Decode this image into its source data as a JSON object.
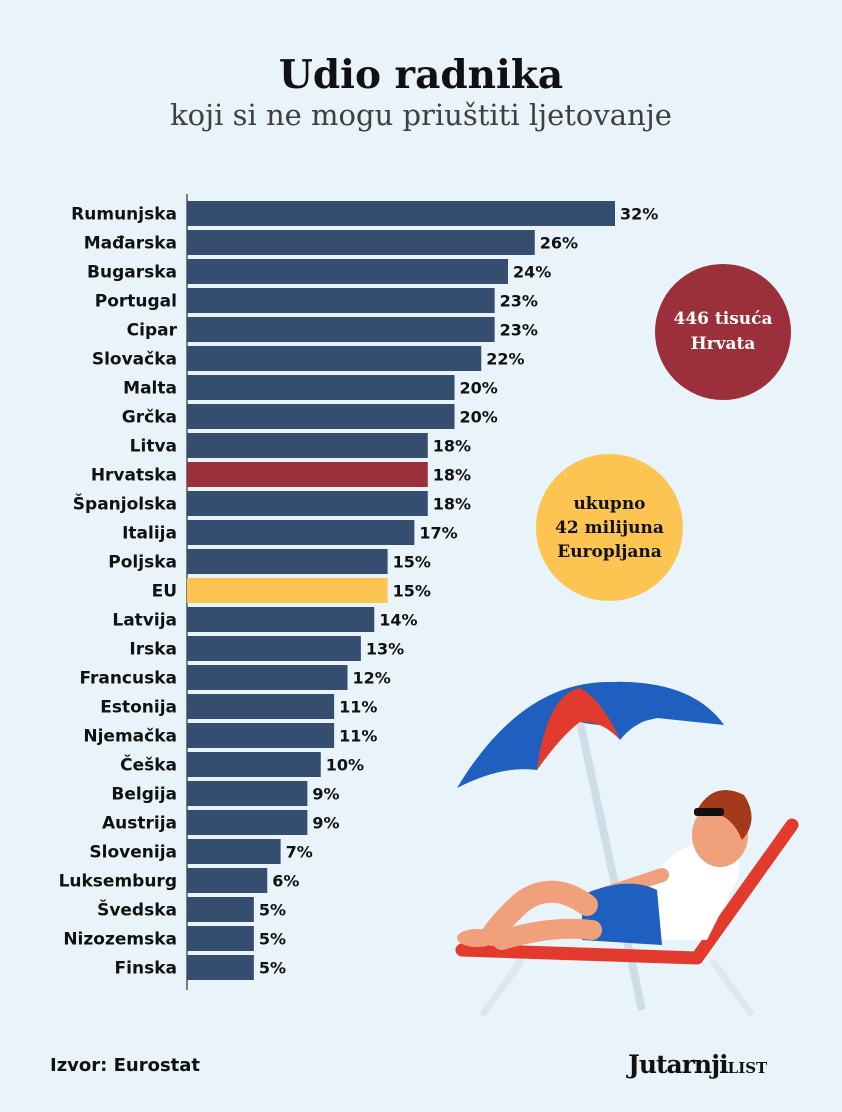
{
  "title": "Udio radnika",
  "subtitle": "koji si ne mogu priuštiti ljetovanje",
  "bubbles": {
    "red": [
      "446 tisuća",
      "Hrvata"
    ],
    "yellow": [
      "ukupno",
      "42 milijuna",
      "Europljana"
    ]
  },
  "source": "Izvor: Eurostat",
  "logo": {
    "main": "Jutarnji",
    "small": "LIST"
  },
  "colors": {
    "default": "#354d6f",
    "highlight_croatia": "#9b2f3a",
    "highlight_eu": "#fcc451",
    "background": "#e9f3fa"
  },
  "chart_data": {
    "type": "bar",
    "orientation": "horizontal",
    "unit": "%",
    "categories": [
      "Rumunjska",
      "Mađarska",
      "Bugarska",
      "Portugal",
      "Cipar",
      "Slovačka",
      "Malta",
      "Grčka",
      "Litva",
      "Hrvatska",
      "Španjolska",
      "Italija",
      "Poljska",
      "EU",
      "Latvija",
      "Irska",
      "Francuska",
      "Estonija",
      "Njemačka",
      "Češka",
      "Belgija",
      "Austrija",
      "Slovenija",
      "Luksemburg",
      "Švedska",
      "Nizozemska",
      "Finska"
    ],
    "values": [
      32,
      26,
      24,
      23,
      23,
      22,
      20,
      20,
      18,
      18,
      18,
      17,
      15,
      15,
      14,
      13,
      12,
      11,
      11,
      10,
      9,
      9,
      7,
      6,
      5,
      5,
      5
    ],
    "labels": [
      "32%",
      "26%",
      "24%",
      "23%",
      "23%",
      "22%",
      "20%",
      "20%",
      "18%",
      "18%",
      "18%",
      "17%",
      "15%",
      "15%",
      "14%",
      "13%",
      "12%",
      "11%",
      "11%",
      "10%",
      "9%",
      "9%",
      "7%",
      "6%",
      "5%",
      "5%",
      "5%"
    ],
    "highlights": {
      "Hrvatska": "#9b2f3a",
      "EU": "#fcc451"
    },
    "xlim": [
      0,
      32
    ],
    "grid": false,
    "legend": "none"
  }
}
